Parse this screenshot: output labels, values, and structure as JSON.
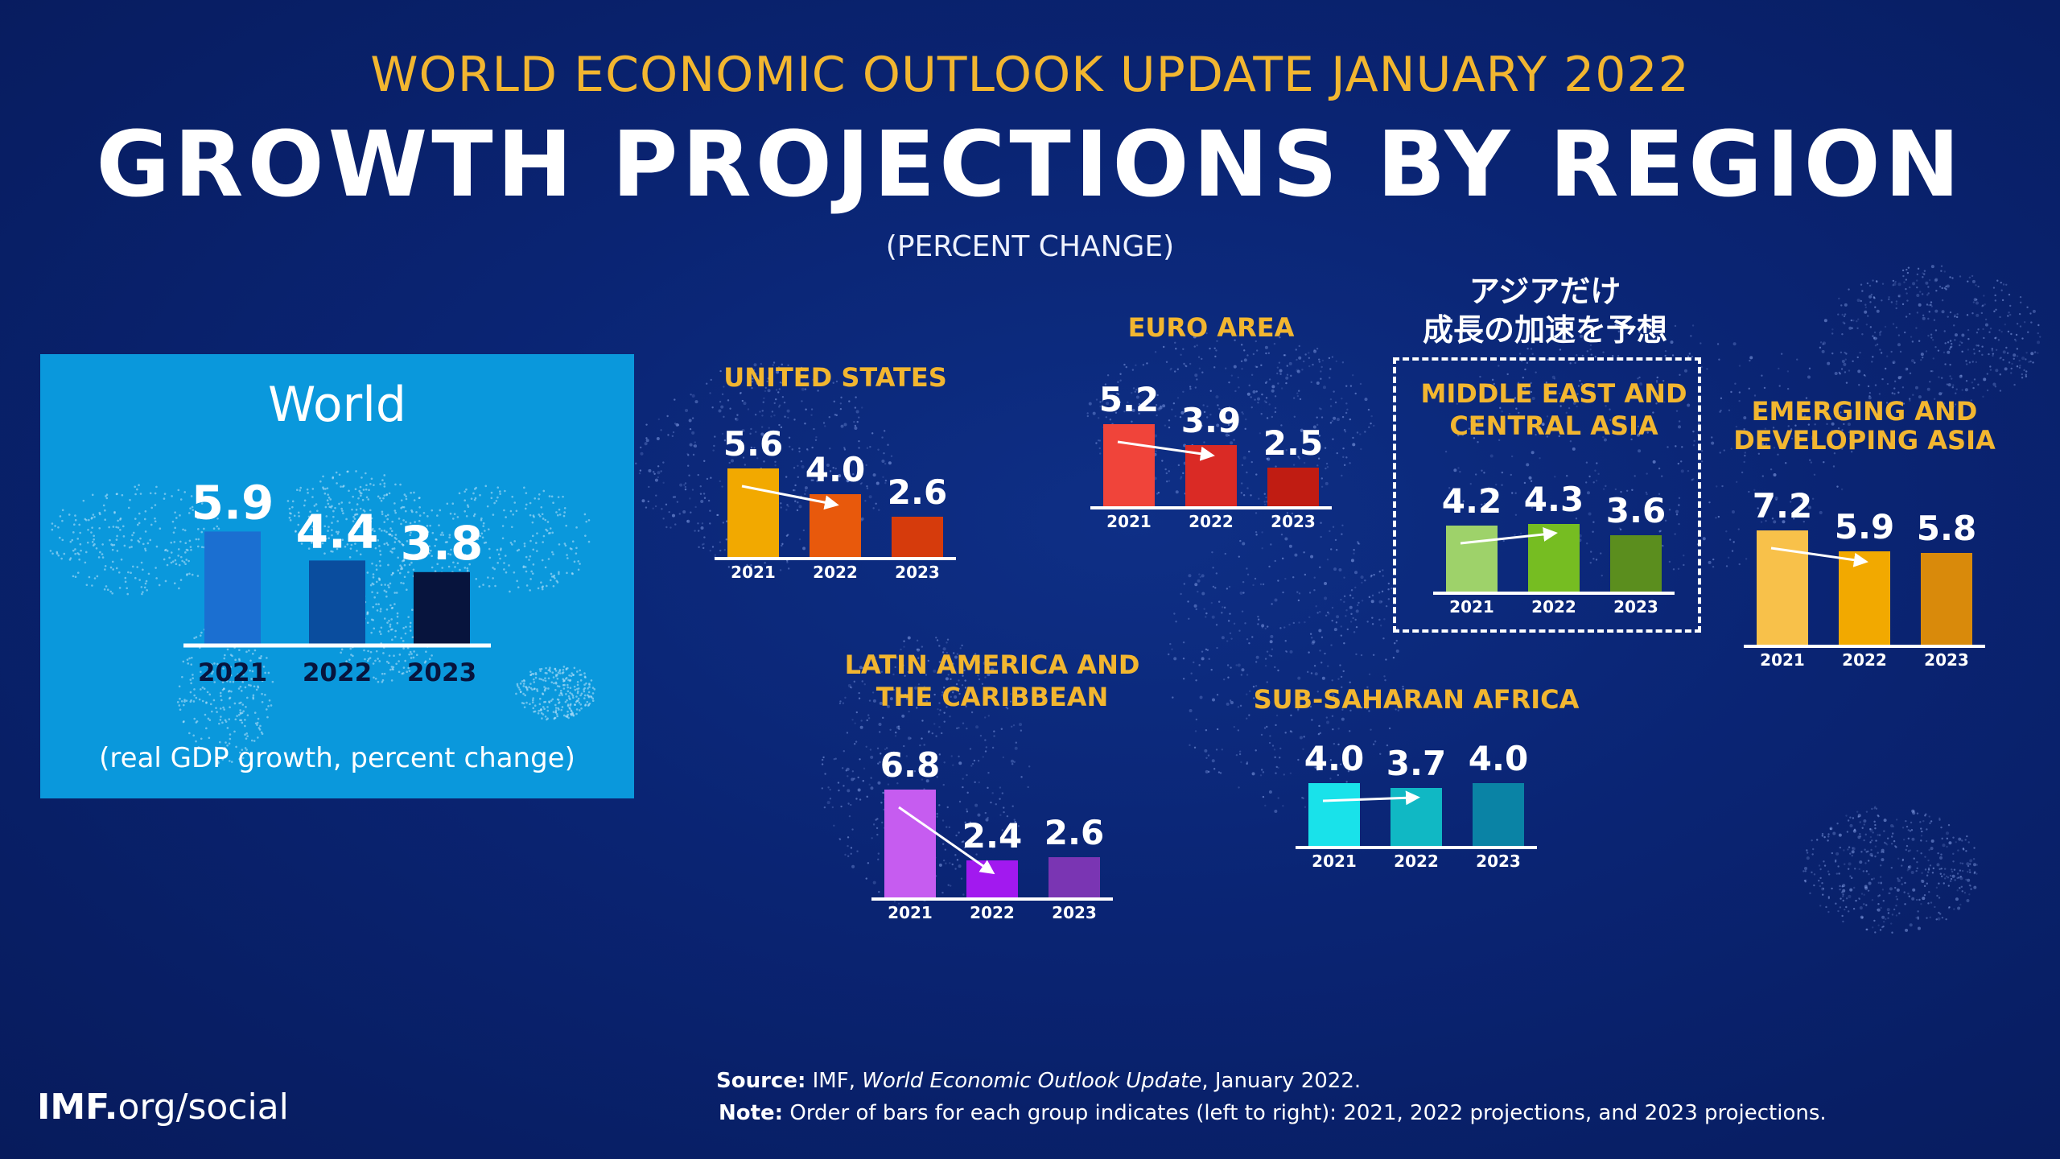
{
  "header": {
    "kicker": "WORLD ECONOMIC OUTLOOK UPDATE JANUARY 2022",
    "title": "GROWTH PROJECTIONS BY REGION",
    "unit": "(PERCENT CHANGE)"
  },
  "callout": {
    "line1": "アジアだけ",
    "line2": "成長の加速を予想"
  },
  "world_panel": {
    "title": "World",
    "caption": "(real GDP growth, percent change)"
  },
  "footer": {
    "logo_bold": "IMF.",
    "logo_rest": "org/social",
    "source_label": "Source:",
    "source_org": "IMF,",
    "source_title": "World Economic Outlook Update",
    "source_date": ", January 2022.",
    "note_label": "Note:",
    "note_text": "Order of bars for each group indicates (left to right): 2021, 2022 projections, and 2023 projections."
  },
  "colors": {
    "background": "#0a2473",
    "kicker": "#f2b630",
    "region_title": "#f2b630",
    "world_panel": "#0a98dc"
  },
  "chart_data": [
    {
      "type": "bar",
      "region": "World",
      "title": "World",
      "categories": [
        "2021",
        "2022",
        "2023"
      ],
      "values": [
        5.9,
        4.4,
        3.8
      ],
      "colors": [
        "#1b6fd1",
        "#0a4d9e",
        "#07143d"
      ],
      "arrow": false
    },
    {
      "type": "bar",
      "region": "UNITED STATES",
      "title": "UNITED STATES",
      "categories": [
        "2021",
        "2022",
        "2023"
      ],
      "values": [
        5.6,
        4.0,
        2.6
      ],
      "colors": [
        "#f2a900",
        "#e8590c",
        "#d63b0c"
      ],
      "arrow": "down"
    },
    {
      "type": "bar",
      "region": "EURO AREA",
      "title": "EURO AREA",
      "categories": [
        "2021",
        "2022",
        "2023"
      ],
      "values": [
        5.2,
        3.9,
        2.5
      ],
      "colors": [
        "#f0443a",
        "#da2a25",
        "#c01c12"
      ],
      "arrow": "down"
    },
    {
      "type": "bar",
      "region": "MIDDLE EAST AND CENTRAL ASIA",
      "title": [
        "MIDDLE EAST AND",
        "CENTRAL ASIA"
      ],
      "categories": [
        "2021",
        "2022",
        "2023"
      ],
      "values": [
        4.2,
        4.3,
        3.6
      ],
      "colors": [
        "#9ed26a",
        "#76bd22",
        "#5b8e1e"
      ],
      "arrow": "up"
    },
    {
      "type": "bar",
      "region": "EMERGING AND DEVELOPING ASIA",
      "title": [
        "EMERGING AND",
        "DEVELOPING ASIA"
      ],
      "categories": [
        "2021",
        "2022",
        "2023"
      ],
      "values": [
        7.2,
        5.9,
        5.8
      ],
      "colors": [
        "#f8c14a",
        "#f2a900",
        "#d98a0b"
      ],
      "arrow": "down"
    },
    {
      "type": "bar",
      "region": "LATIN AMERICA AND THE CARIBBEAN",
      "title": [
        "LATIN AMERICA AND",
        "THE CARIBBEAN"
      ],
      "categories": [
        "2021",
        "2022",
        "2023"
      ],
      "values": [
        6.8,
        2.4,
        2.6
      ],
      "colors": [
        "#c65cf0",
        "#a219ef",
        "#7a35b3"
      ],
      "arrow": "down"
    },
    {
      "type": "bar",
      "region": "SUB-SAHARAN AFRICA",
      "title": "SUB-SAHARAN AFRICA",
      "categories": [
        "2021",
        "2022",
        "2023"
      ],
      "values": [
        4.0,
        3.7,
        4.0
      ],
      "colors": [
        "#19e2ea",
        "#10b8c4",
        "#0a83a5"
      ],
      "arrow": "down"
    }
  ]
}
